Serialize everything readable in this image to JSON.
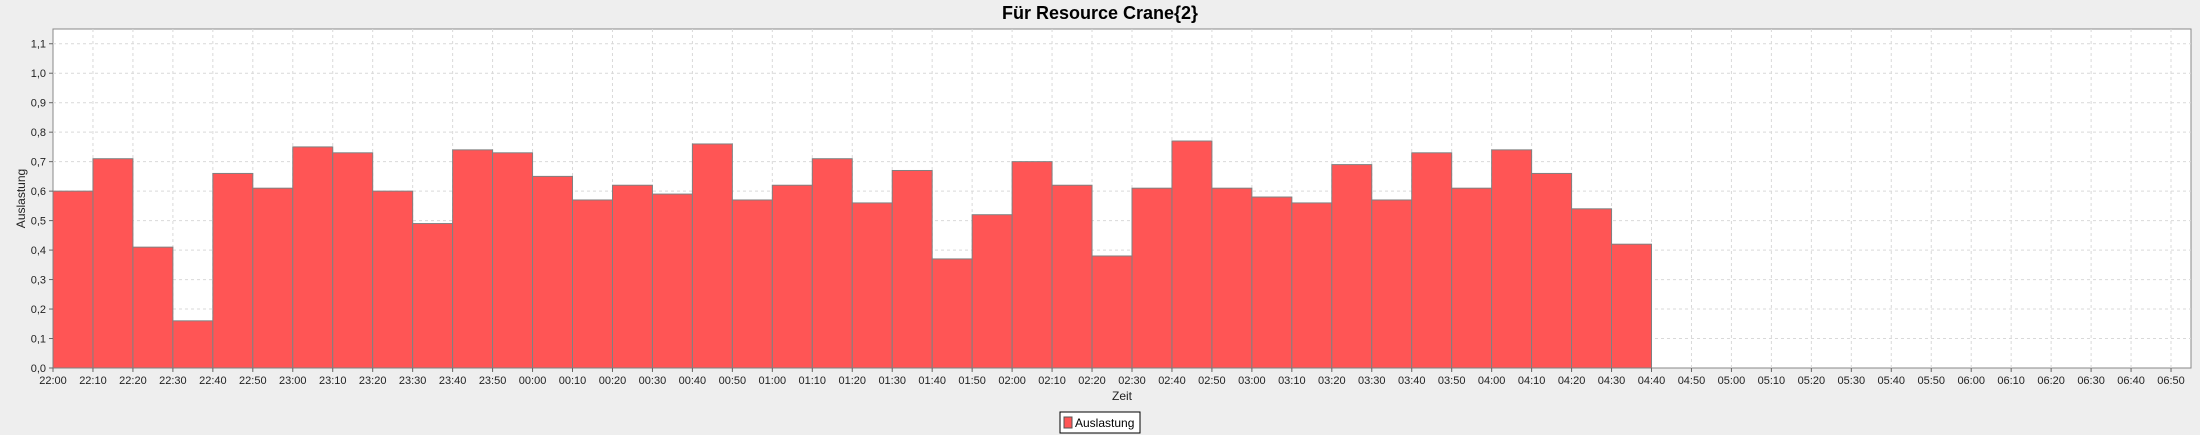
{
  "chart_data": {
    "type": "bar",
    "title": "Für Resource Crane{2}",
    "xlabel": "Zeit",
    "ylabel": "Auslastung",
    "ylim": [
      0,
      1.15
    ],
    "y_ticks": [
      "0,0",
      "0,1",
      "0,2",
      "0,3",
      "0,4",
      "0,5",
      "0,6",
      "0,7",
      "0,8",
      "0,9",
      "1,0",
      "1,1"
    ],
    "x_ticks": [
      "22:00",
      "22:10",
      "22:20",
      "22:30",
      "22:40",
      "22:50",
      "23:00",
      "23:10",
      "23:20",
      "23:30",
      "23:40",
      "23:50",
      "00:00",
      "00:10",
      "00:20",
      "00:30",
      "00:40",
      "00:50",
      "01:00",
      "01:10",
      "01:20",
      "01:30",
      "01:40",
      "01:50",
      "02:00",
      "02:10",
      "02:20",
      "02:30",
      "02:40",
      "02:50",
      "03:00",
      "03:10",
      "03:20",
      "03:30",
      "03:40",
      "03:50",
      "04:00",
      "04:10",
      "04:20",
      "04:30",
      "04:40",
      "04:50",
      "05:00",
      "05:10",
      "05:20",
      "05:30",
      "05:40",
      "05:50",
      "06:00",
      "06:10",
      "06:20",
      "06:30",
      "06:40",
      "06:50"
    ],
    "x_range_end": "06:55",
    "grid": true,
    "legend_position": "bottom-center",
    "series": [
      {
        "name": "Auslastung",
        "color": "#ff5555",
        "values": [
          0.6,
          0.71,
          0.41,
          0.16,
          0.66,
          0.61,
          0.75,
          0.73,
          0.6,
          0.49,
          0.74,
          0.73,
          0.65,
          0.57,
          0.62,
          0.59,
          0.76,
          0.57,
          0.62,
          0.71,
          0.56,
          0.67,
          0.37,
          0.52,
          0.7,
          0.62,
          0.38,
          0.61,
          0.77,
          0.61,
          0.58,
          0.56,
          0.69,
          0.57,
          0.73,
          0.61,
          0.74,
          0.66,
          0.54,
          0.42
        ]
      }
    ]
  }
}
